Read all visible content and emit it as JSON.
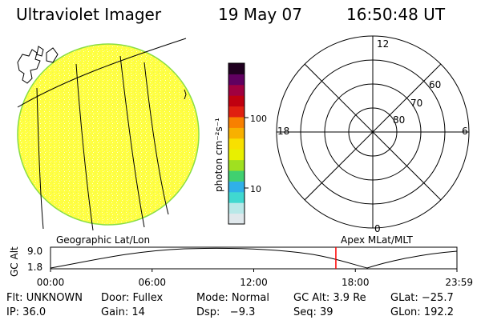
{
  "header": {
    "title": "Ultraviolet Imager",
    "date": "19 May 07",
    "time": "16:50:48 UT"
  },
  "colorbar": {
    "unit_label": "photon cm⁻²s⁻¹",
    "tick_high": "100",
    "tick_low": "10",
    "colors": [
      "#e0e8ec",
      "#b8e8e8",
      "#40d8d0",
      "#30b0e8",
      "#40d070",
      "#a0e020",
      "#e8f000",
      "#f8e000",
      "#f8b000",
      "#f88000",
      "#e02010",
      "#c00010",
      "#a00040",
      "#600060",
      "#200020"
    ]
  },
  "polar_plot": {
    "mlt_labels": {
      "top": "12",
      "left": "18",
      "right": "6",
      "bottom": "0"
    },
    "lat_labels": [
      "60",
      "70",
      "80"
    ]
  },
  "altitude_panel": {
    "left_title": "Geographic Lat/Lon",
    "right_title": "Apex MLat/MLT",
    "ylabel": "GC Alt",
    "y_high": "9.0",
    "y_low": "1.8",
    "x_ticks": [
      "00:00",
      "06:00",
      "12:00",
      "18:00",
      "23:59"
    ],
    "marker_time_hours": 16.85,
    "marker_color": "#ff0000"
  },
  "info": {
    "row1": {
      "flt": "Flt: UNKNOWN",
      "door": "Door: Fullex",
      "mode": "Mode: Normal",
      "gcalt": "GC Alt: 3.9 Re",
      "glat": "GLat: −25.7"
    },
    "row2": {
      "ip": "IP: 36.0",
      "gain": "Gain: 14",
      "dsp": "Dsp:   −9.3",
      "seq": "Seq: 39",
      "glon": "GLon: 192.2"
    }
  },
  "image": {
    "disk_color": "#ffff33",
    "limb_color": "#88dd44"
  }
}
